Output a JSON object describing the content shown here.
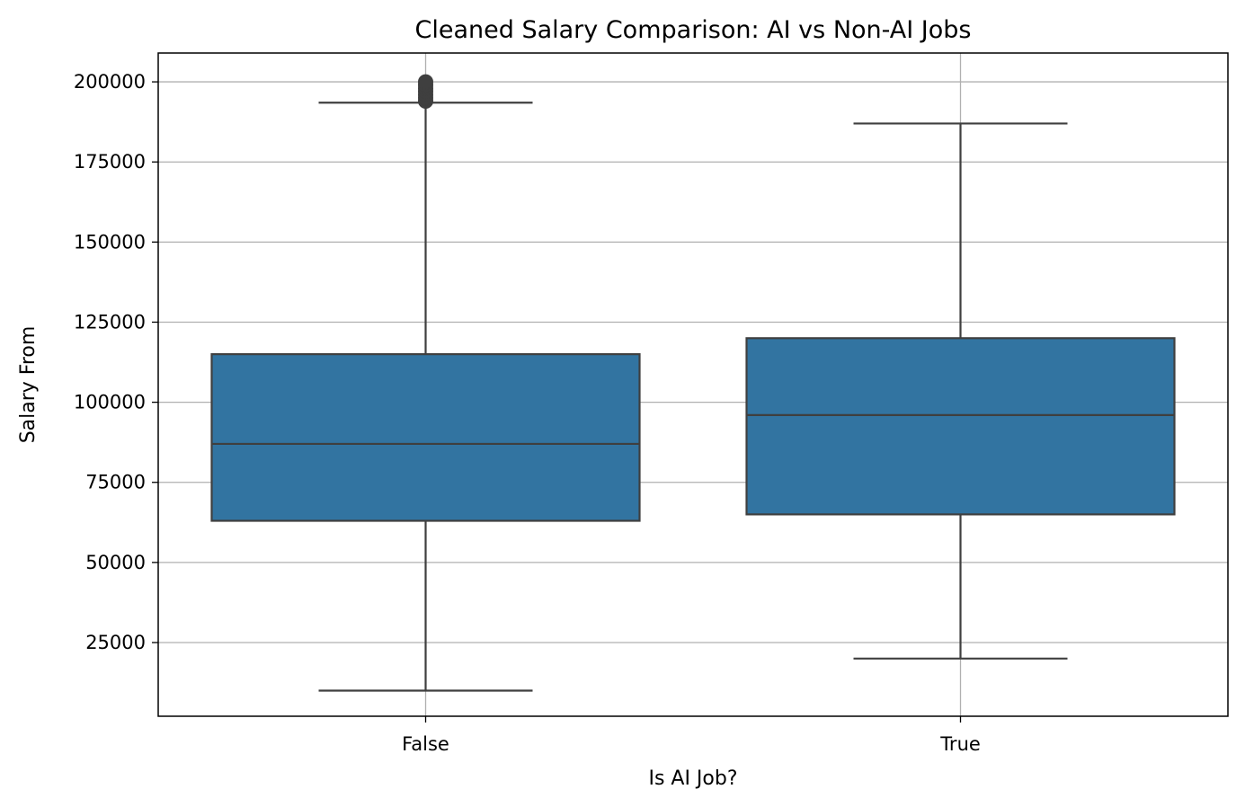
{
  "chart_data": {
    "type": "box",
    "title": "Cleaned Salary Comparison: AI vs Non-AI Jobs",
    "xlabel": "Is AI Job?",
    "ylabel": "Salary From",
    "ylim": [
      2000,
      209000
    ],
    "yticks": [
      25000,
      50000,
      75000,
      100000,
      125000,
      150000,
      175000,
      200000
    ],
    "grid": true,
    "colors": {
      "box_fill": "#3274a1",
      "box_edge": "#3f3f3f",
      "grid": "#b0b0b0",
      "axes": "#000000"
    },
    "categories": [
      "False",
      "True"
    ],
    "boxes": [
      {
        "category": "False",
        "whisker_low": 10000,
        "q1": 63000,
        "median": 87000,
        "q3": 115000,
        "whisker_high": 193500,
        "outliers": [
          194000,
          195000,
          196000,
          197000,
          198000,
          199000,
          200000
        ]
      },
      {
        "category": "True",
        "whisker_low": 20000,
        "q1": 65000,
        "median": 96000,
        "q3": 120000,
        "whisker_high": 187000,
        "outliers": []
      }
    ]
  }
}
